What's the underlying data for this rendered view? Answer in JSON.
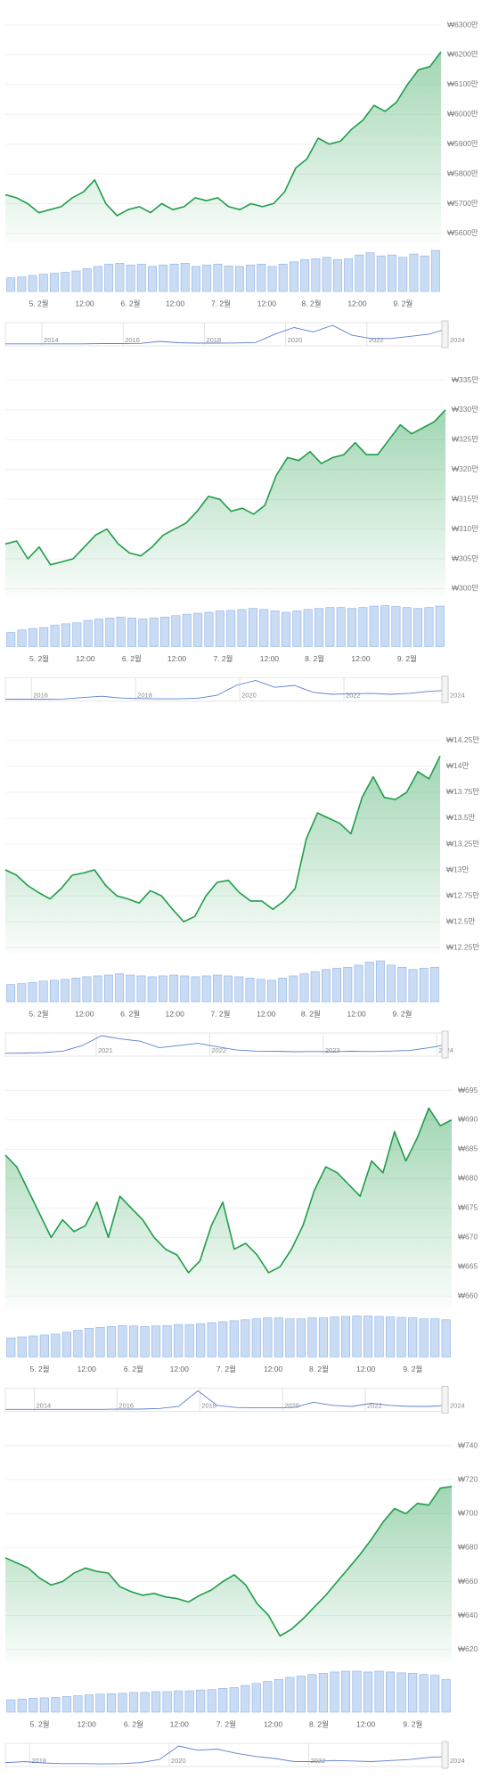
{
  "chart_data": [
    {
      "type": "line",
      "color": "#1f9d4a",
      "volume_color": "#c9dcf4",
      "values": [
        5730,
        5720,
        5700,
        5670,
        5680,
        5690,
        5720,
        5740,
        5780,
        5700,
        5660,
        5680,
        5690,
        5670,
        5700,
        5680,
        5690,
        5720,
        5710,
        5720,
        5690,
        5680,
        5700,
        5690,
        5700,
        5740,
        5820,
        5850,
        5920,
        5900,
        5910,
        5950,
        5980,
        6030,
        6010,
        6040,
        6100,
        6150,
        6160,
        6210
      ],
      "volume": [
        30,
        32,
        35,
        38,
        40,
        42,
        45,
        50,
        55,
        60,
        62,
        58,
        60,
        55,
        58,
        60,
        62,
        55,
        58,
        60,
        56,
        55,
        58,
        60,
        55,
        60,
        65,
        70,
        72,
        75,
        70,
        72,
        80,
        85,
        78,
        80,
        75,
        82,
        78,
        90
      ],
      "xlim": [
        0,
        39
      ],
      "xticks": [
        {
          "value": 3.0,
          "label": "5. 2월"
        },
        {
          "value": 7.1,
          "label": "12:00"
        },
        {
          "value": 11.2,
          "label": "6. 2월"
        },
        {
          "value": 15.2,
          "label": "12:00"
        },
        {
          "value": 19.3,
          "label": "7. 2월"
        },
        {
          "value": 23.4,
          "label": "12:00"
        },
        {
          "value": 27.4,
          "label": "8. 2월"
        },
        {
          "value": 31.5,
          "label": "12:00"
        },
        {
          "value": 35.6,
          "label": "9. 2월"
        }
      ],
      "ylim": [
        5570,
        6300
      ],
      "yticks": [
        {
          "value": 6300,
          "label": "₩6300만"
        },
        {
          "value": 6200,
          "label": "₩6200만"
        },
        {
          "value": 6100,
          "label": "₩6100만"
        },
        {
          "value": 6000,
          "label": "₩6000만"
        },
        {
          "value": 5900,
          "label": "₩5900만"
        },
        {
          "value": 5800,
          "label": "₩5800만"
        },
        {
          "value": 5700,
          "label": "₩5700만"
        },
        {
          "value": 5600,
          "label": "₩5600만"
        }
      ],
      "nav_values": [
        1,
        1,
        1,
        1,
        1,
        2,
        2,
        3,
        12,
        6,
        4,
        4,
        5,
        7,
        45,
        75,
        55,
        85,
        40,
        25,
        25,
        35,
        45,
        70
      ],
      "nav_xlim": [
        2013.1,
        2024.0
      ],
      "nav_xticks": [
        2014,
        2016,
        2018,
        2020,
        2022,
        2024
      ]
    },
    {
      "type": "line",
      "color": "#1f9d4a",
      "volume_color": "#c9dcf4",
      "values": [
        307.5,
        308,
        305,
        307,
        304,
        304.5,
        305,
        307,
        309,
        310,
        307.5,
        306,
        305.5,
        307,
        309,
        310,
        311,
        313,
        315.5,
        315,
        313,
        313.5,
        312.5,
        314,
        319,
        322,
        321.5,
        323,
        321,
        322,
        322.5,
        324.5,
        322.5,
        322.5,
        325,
        327.5,
        326,
        327,
        328,
        330
      ],
      "volume": [
        30,
        35,
        38,
        40,
        45,
        48,
        50,
        55,
        58,
        60,
        62,
        60,
        58,
        60,
        62,
        65,
        68,
        70,
        72,
        75,
        76,
        78,
        80,
        78,
        75,
        72,
        75,
        78,
        80,
        82,
        82,
        80,
        82,
        85,
        86,
        84,
        82,
        80,
        82,
        85
      ],
      "xlim": [
        0,
        39
      ],
      "xticks": [
        {
          "value": 3.0,
          "label": "5. 2월"
        },
        {
          "value": 7.1,
          "label": "12:00"
        },
        {
          "value": 11.2,
          "label": "6. 2월"
        },
        {
          "value": 15.2,
          "label": "12:00"
        },
        {
          "value": 19.3,
          "label": "7. 2월"
        },
        {
          "value": 23.4,
          "label": "12:00"
        },
        {
          "value": 27.4,
          "label": "8. 2월"
        },
        {
          "value": 31.5,
          "label": "12:00"
        },
        {
          "value": 35.6,
          "label": "9. 2월"
        }
      ],
      "ylim": [
        298.5,
        335
      ],
      "yticks": [
        {
          "value": 335,
          "label": "₩335만"
        },
        {
          "value": 330,
          "label": "₩330만"
        },
        {
          "value": 325,
          "label": "₩325만"
        },
        {
          "value": 320,
          "label": "₩320만"
        },
        {
          "value": 315,
          "label": "₩315만"
        },
        {
          "value": 310,
          "label": "₩310만"
        },
        {
          "value": 305,
          "label": "₩305만"
        },
        {
          "value": 300,
          "label": "₩300만"
        }
      ],
      "nav_values": [
        0,
        0,
        0,
        1,
        8,
        15,
        6,
        3,
        2,
        2,
        5,
        20,
        70,
        95,
        60,
        70,
        35,
        25,
        28,
        30,
        25,
        30,
        40,
        45
      ],
      "nav_xlim": [
        2015.5,
        2024.0
      ],
      "nav_xticks": [
        2016,
        2018,
        2020,
        2022,
        2024
      ]
    },
    {
      "type": "line",
      "color": "#1f9d4a",
      "volume_color": "#c9dcf4",
      "values": [
        13,
        12.95,
        12.85,
        12.78,
        12.72,
        12.82,
        12.95,
        12.97,
        13,
        12.85,
        12.75,
        12.72,
        12.68,
        12.8,
        12.75,
        12.62,
        12.5,
        12.55,
        12.75,
        12.88,
        12.9,
        12.78,
        12.7,
        12.7,
        12.62,
        12.7,
        12.82,
        13.3,
        13.55,
        13.5,
        13.45,
        13.35,
        13.7,
        13.9,
        13.7,
        13.68,
        13.75,
        13.95,
        13.88,
        14.1
      ],
      "volume": [
        40,
        42,
        45,
        48,
        50,
        52,
        55,
        58,
        60,
        62,
        65,
        62,
        60,
        58,
        60,
        62,
        60,
        58,
        60,
        62,
        60,
        58,
        55,
        52,
        50,
        55,
        60,
        65,
        70,
        75,
        78,
        80,
        85,
        92,
        95,
        85,
        80,
        75,
        78,
        80
      ],
      "xlim": [
        0,
        39
      ],
      "xticks": [
        {
          "value": 3.0,
          "label": "5. 2월"
        },
        {
          "value": 7.1,
          "label": "12:00"
        },
        {
          "value": 11.2,
          "label": "6. 2월"
        },
        {
          "value": 15.2,
          "label": "12:00"
        },
        {
          "value": 19.3,
          "label": "7. 2월"
        },
        {
          "value": 23.4,
          "label": "12:00"
        },
        {
          "value": 27.4,
          "label": "8. 2월"
        },
        {
          "value": 31.5,
          "label": "12:00"
        },
        {
          "value": 35.6,
          "label": "9. 2월"
        }
      ],
      "ylim": [
        12.2,
        14.3
      ],
      "yticks": [
        {
          "value": 14.25,
          "label": "₩14.25만"
        },
        {
          "value": 14,
          "label": "₩14만"
        },
        {
          "value": 13.75,
          "label": "₩13.75만"
        },
        {
          "value": 13.5,
          "label": "₩13.5만"
        },
        {
          "value": 13.25,
          "label": "₩13.25만"
        },
        {
          "value": 13,
          "label": "₩13만"
        },
        {
          "value": 12.75,
          "label": "₩12.75만"
        },
        {
          "value": 12.5,
          "label": "₩12.5만"
        },
        {
          "value": 12.25,
          "label": "₩12.25만"
        }
      ],
      "nav_values": [
        5,
        6,
        8,
        15,
        40,
        85,
        70,
        60,
        30,
        40,
        50,
        35,
        20,
        15,
        14,
        12,
        13,
        12,
        14,
        13,
        15,
        18,
        30,
        45
      ],
      "nav_xlim": [
        2020.2,
        2024.1
      ],
      "nav_xticks": [
        2021,
        2022,
        2023,
        2024
      ]
    },
    {
      "type": "line",
      "color": "#1f9d4a",
      "volume_color": "#c9dcf4",
      "values": [
        684,
        682,
        678,
        674,
        670,
        673,
        671,
        672,
        676,
        670,
        677,
        675,
        673,
        670,
        668,
        667,
        664,
        666,
        672,
        676,
        668,
        669,
        667,
        664,
        665,
        668,
        672,
        678,
        682,
        681,
        679,
        677,
        683,
        681,
        688,
        683,
        687,
        692,
        689,
        690
      ],
      "volume": [
        40,
        42,
        44,
        46,
        48,
        52,
        56,
        60,
        62,
        64,
        66,
        65,
        64,
        65,
        66,
        68,
        68,
        70,
        72,
        74,
        76,
        78,
        80,
        82,
        82,
        80,
        80,
        82,
        82,
        84,
        85,
        86,
        86,
        85,
        84,
        83,
        82,
        80,
        80,
        78
      ],
      "xlim": [
        0,
        39
      ],
      "xticks": [
        {
          "value": 3.0,
          "label": "5. 2월"
        },
        {
          "value": 7.1,
          "label": "12:00"
        },
        {
          "value": 11.2,
          "label": "6. 2월"
        },
        {
          "value": 15.2,
          "label": "12:00"
        },
        {
          "value": 19.3,
          "label": "7. 2월"
        },
        {
          "value": 23.4,
          "label": "12:00"
        },
        {
          "value": 27.4,
          "label": "8. 2월"
        },
        {
          "value": 31.5,
          "label": "12:00"
        },
        {
          "value": 35.6,
          "label": "9. 2월"
        }
      ],
      "ylim": [
        658,
        695
      ],
      "yticks": [
        {
          "value": 695,
          "label": "₩695"
        },
        {
          "value": 690,
          "label": "₩690"
        },
        {
          "value": 685,
          "label": "₩685"
        },
        {
          "value": 680,
          "label": "₩680"
        },
        {
          "value": 675,
          "label": "₩675"
        },
        {
          "value": 670,
          "label": "₩670"
        },
        {
          "value": 665,
          "label": "₩665"
        },
        {
          "value": 660,
          "label": "₩660"
        }
      ],
      "nav_values": [
        1,
        1,
        1,
        1,
        1,
        1,
        2,
        2,
        5,
        15,
        90,
        20,
        10,
        8,
        8,
        10,
        35,
        20,
        15,
        30,
        20,
        15,
        15,
        20
      ],
      "nav_xlim": [
        2013.3,
        2024.0
      ],
      "nav_xticks": [
        2014,
        2016,
        2018,
        2020,
        2022,
        2024
      ]
    },
    {
      "type": "line",
      "color": "#1f9d4a",
      "volume_color": "#c9dcf4",
      "values": [
        674,
        671,
        668,
        662,
        658,
        660,
        665,
        668,
        666,
        665,
        657,
        654,
        652,
        653,
        651,
        650,
        648,
        652,
        655,
        660,
        664,
        658,
        647,
        640,
        628,
        632,
        638,
        645,
        652,
        660,
        668,
        676,
        685,
        695,
        703,
        700,
        706,
        705,
        715,
        716
      ],
      "volume": [
        30,
        32,
        34,
        35,
        36,
        38,
        40,
        42,
        44,
        45,
        46,
        48,
        48,
        50,
        50,
        52,
        52,
        54,
        55,
        58,
        60,
        65,
        70,
        75,
        80,
        85,
        88,
        92,
        95,
        98,
        100,
        100,
        98,
        100,
        98,
        96,
        95,
        92,
        90,
        80
      ],
      "xlim": [
        0,
        39
      ],
      "xticks": [
        {
          "value": 3.0,
          "label": "5. 2월"
        },
        {
          "value": 7.1,
          "label": "12:00"
        },
        {
          "value": 11.2,
          "label": "6. 2월"
        },
        {
          "value": 15.2,
          "label": "12:00"
        },
        {
          "value": 19.3,
          "label": "7. 2월"
        },
        {
          "value": 23.4,
          "label": "12:00"
        },
        {
          "value": 27.4,
          "label": "8. 2월"
        },
        {
          "value": 31.5,
          "label": "12:00"
        },
        {
          "value": 35.6,
          "label": "9. 2월"
        }
      ],
      "ylim": [
        612,
        740
      ],
      "yticks": [
        {
          "value": 740,
          "label": "₩740"
        },
        {
          "value": 720,
          "label": "₩720"
        },
        {
          "value": 700,
          "label": "₩700"
        },
        {
          "value": 680,
          "label": "₩680"
        },
        {
          "value": 660,
          "label": "₩660"
        },
        {
          "value": 640,
          "label": "₩640"
        },
        {
          "value": 620,
          "label": "₩620"
        }
      ],
      "nav_values": [
        10,
        15,
        8,
        5,
        5,
        4,
        5,
        10,
        25,
        90,
        70,
        75,
        55,
        40,
        30,
        15,
        15,
        20,
        18,
        15,
        20,
        25,
        35,
        40
      ],
      "nav_xlim": [
        2017.65,
        2024.0
      ],
      "nav_xticks": [
        2018,
        2020,
        2022,
        2024
      ]
    }
  ]
}
